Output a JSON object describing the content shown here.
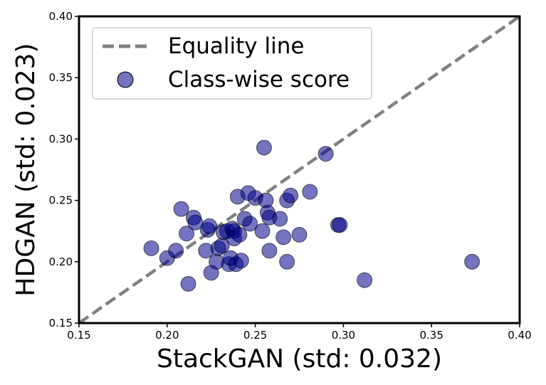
{
  "chart_data": {
    "type": "scatter",
    "xlabel": "StackGAN (std: 0.032)",
    "ylabel": "HDGAN (std: 0.023)",
    "xlim": [
      0.15,
      0.4
    ],
    "ylim": [
      0.15,
      0.4
    ],
    "xticks": [
      "0.15",
      "0.20",
      "0.25",
      "0.30",
      "0.35",
      "0.40"
    ],
    "yticks": [
      "0.15",
      "0.20",
      "0.25",
      "0.30",
      "0.35",
      "0.40"
    ],
    "grid": false,
    "legend_position": "top-left",
    "series": [
      {
        "name": "Equality line",
        "kind": "line",
        "style": "dashed",
        "color": "#808080",
        "x": [
          0.15,
          0.4
        ],
        "y": [
          0.15,
          0.4
        ]
      },
      {
        "name": "Class-wise score",
        "kind": "scatter",
        "color": "#00008b",
        "points": [
          [
            0.191,
            0.211
          ],
          [
            0.2,
            0.203
          ],
          [
            0.205,
            0.209
          ],
          [
            0.208,
            0.243
          ],
          [
            0.211,
            0.223
          ],
          [
            0.212,
            0.182
          ],
          [
            0.215,
            0.236
          ],
          [
            0.216,
            0.232
          ],
          [
            0.222,
            0.209
          ],
          [
            0.223,
            0.226
          ],
          [
            0.224,
            0.229
          ],
          [
            0.225,
            0.191
          ],
          [
            0.228,
            0.2
          ],
          [
            0.229,
            0.211
          ],
          [
            0.231,
            0.213
          ],
          [
            0.232,
            0.224
          ],
          [
            0.234,
            0.225
          ],
          [
            0.235,
            0.198
          ],
          [
            0.236,
            0.203
          ],
          [
            0.237,
            0.227
          ],
          [
            0.238,
            0.225
          ],
          [
            0.238,
            0.219
          ],
          [
            0.239,
            0.198
          ],
          [
            0.24,
            0.253
          ],
          [
            0.241,
            0.222
          ],
          [
            0.242,
            0.201
          ],
          [
            0.244,
            0.235
          ],
          [
            0.246,
            0.256
          ],
          [
            0.247,
            0.231
          ],
          [
            0.25,
            0.252
          ],
          [
            0.254,
            0.225
          ],
          [
            0.255,
            0.293
          ],
          [
            0.256,
            0.25
          ],
          [
            0.257,
            0.24
          ],
          [
            0.258,
            0.236
          ],
          [
            0.258,
            0.209
          ],
          [
            0.264,
            0.235
          ],
          [
            0.266,
            0.22
          ],
          [
            0.268,
            0.2
          ],
          [
            0.268,
            0.25
          ],
          [
            0.27,
            0.254
          ],
          [
            0.275,
            0.222
          ],
          [
            0.281,
            0.257
          ],
          [
            0.29,
            0.288
          ],
          [
            0.297,
            0.23
          ],
          [
            0.298,
            0.23
          ],
          [
            0.312,
            0.185
          ],
          [
            0.373,
            0.2
          ]
        ]
      }
    ]
  }
}
